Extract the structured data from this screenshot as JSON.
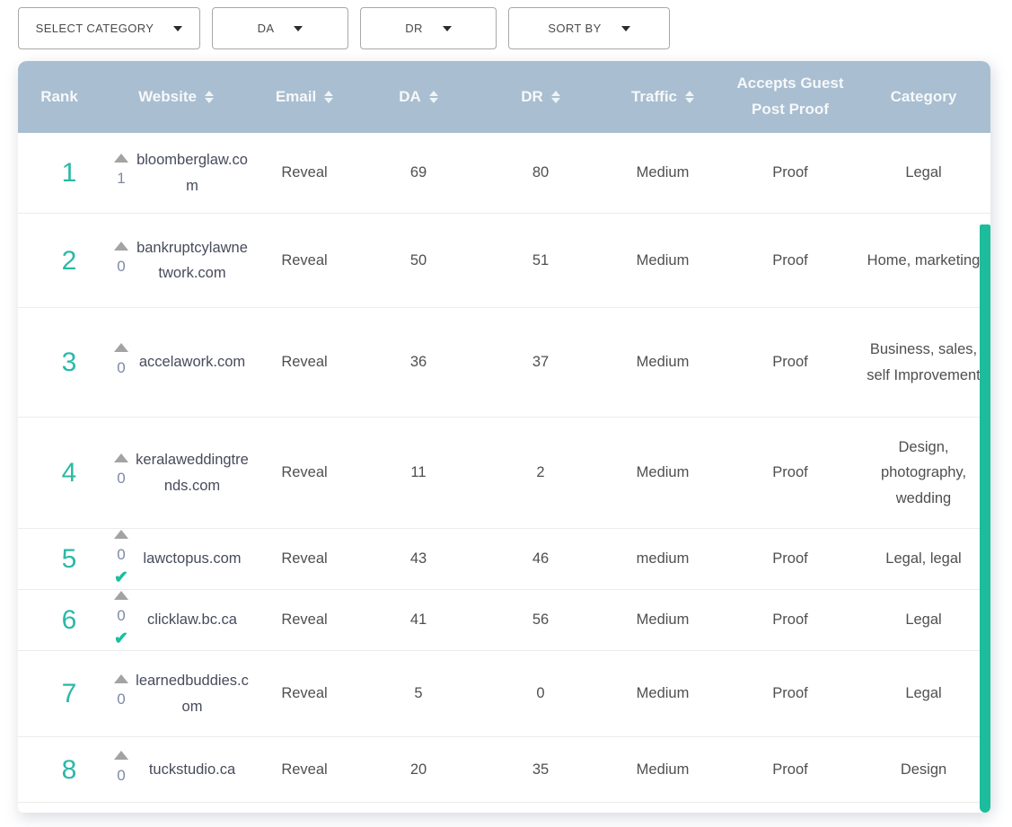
{
  "filters": [
    {
      "label": "SELECT CATEGORY"
    },
    {
      "label": "DA"
    },
    {
      "label": "DR"
    },
    {
      "label": "SORT BY"
    }
  ],
  "table": {
    "columns": [
      {
        "label": "Rank",
        "sortable": false
      },
      {
        "label": "Website",
        "sortable": true
      },
      {
        "label": "Email",
        "sortable": true
      },
      {
        "label": "DA",
        "sortable": true
      },
      {
        "label": "DR",
        "sortable": true
      },
      {
        "label": "Traffic",
        "sortable": true
      },
      {
        "label": "Accepts Guest Post Proof",
        "sortable": false
      },
      {
        "label": "Category",
        "sortable": false
      }
    ],
    "rows": [
      {
        "rank": "1",
        "votes": "1",
        "verified": false,
        "website": "bloomberglaw.com",
        "email": "Reveal",
        "da": "69",
        "dr": "80",
        "traffic": "Medium",
        "proof": "Proof",
        "category": "Legal"
      },
      {
        "rank": "2",
        "votes": "0",
        "verified": false,
        "website": "bankruptcylawnetwork.com",
        "email": "Reveal",
        "da": "50",
        "dr": "51",
        "traffic": "Medium",
        "proof": "Proof",
        "category": "Home, marketing"
      },
      {
        "rank": "3",
        "votes": "0",
        "verified": false,
        "website": "accelawork.com",
        "email": "Reveal",
        "da": "36",
        "dr": "37",
        "traffic": "Medium",
        "proof": "Proof",
        "category": "Business, sales, self Improvement"
      },
      {
        "rank": "4",
        "votes": "0",
        "verified": false,
        "website": "keralaweddingtrends.com",
        "email": "Reveal",
        "da": "11",
        "dr": "2",
        "traffic": "Medium",
        "proof": "Proof",
        "category": "Design, photography, wedding"
      },
      {
        "rank": "5",
        "votes": "0",
        "verified": true,
        "website": "lawctopus.com",
        "email": "Reveal",
        "da": "43",
        "dr": "46",
        "traffic": "medium",
        "proof": "Proof",
        "category": "Legal, legal"
      },
      {
        "rank": "6",
        "votes": "0",
        "verified": true,
        "website": "clicklaw.bc.ca",
        "email": "Reveal",
        "da": "41",
        "dr": "56",
        "traffic": "Medium",
        "proof": "Proof",
        "category": "Legal"
      },
      {
        "rank": "7",
        "votes": "0",
        "verified": false,
        "website": "learnedbuddies.com",
        "email": "Reveal",
        "da": "5",
        "dr": "0",
        "traffic": "Medium",
        "proof": "Proof",
        "category": "Legal"
      },
      {
        "rank": "8",
        "votes": "0",
        "verified": false,
        "website": "tuckstudio.ca",
        "email": "Reveal",
        "da": "20",
        "dr": "35",
        "traffic": "Medium",
        "proof": "Proof",
        "category": "Design"
      }
    ]
  },
  "icons": {
    "caret_down": "triangle-down",
    "sort": "triangle-up-down",
    "upvote": "triangle-up",
    "check_glyph": "✔"
  },
  "colors": {
    "header_bg": "#a9bed0",
    "header_text": "#f6f8fa",
    "rank_accent": "#2ab9a8",
    "scrollbar_teal": "#1dbc9c",
    "check_teal": "#19bf9d",
    "vote_count": "#7e89a3",
    "body_text": "#4f4f4f",
    "row_border": "#ececec"
  }
}
